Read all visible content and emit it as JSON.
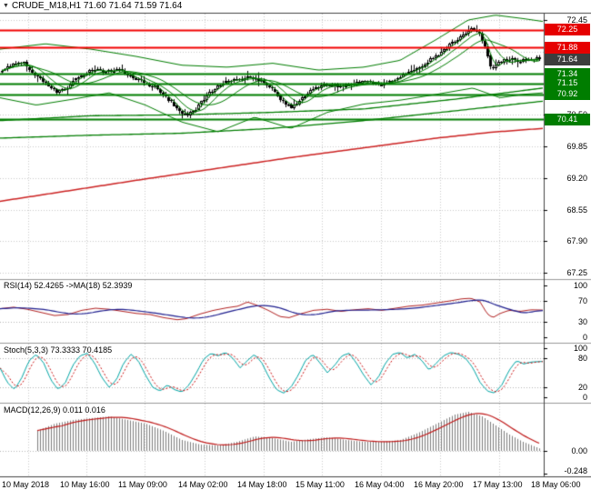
{
  "colors": {
    "up": "#ffffff",
    "down": "#000000",
    "wick": "#000000",
    "grid": "#c9c9c9",
    "band": "#007d00",
    "ma_red": "#cc2222",
    "res_line": "#f20000",
    "sup_line": "#007d00",
    "res_box": "#e60000",
    "sup_box": "#007d00",
    "cur_box": "#3d3d3d",
    "rsi": "#b22222",
    "rsi_ma": "#1f1f8f",
    "stoch": "#00a5a5",
    "stoch_sig": "#cc1111",
    "macd_hist": "#7d7d7d",
    "macd_sig": "#bf1818",
    "sep": "#999999",
    "frame": "#444444",
    "text": "#000000"
  },
  "icons": {
    "title_marker": "▼"
  },
  "time_axis": {
    "labels": [
      "10 May 2018",
      "10 May 16:00",
      "11 May 09:00",
      "14 May 02:00",
      "14 May 18:00",
      "15 May 11:00",
      "16 May 04:00",
      "16 May 20:00",
      "17 May 13:00",
      "18 May 06:00"
    ]
  },
  "chart_data": [
    {
      "type": "candlestick",
      "name": "main",
      "title": "CRUDE_M18,H1 71.60 71.64 71.59 71.64",
      "ohlc_current": {
        "open": "71.60",
        "high": "71.64",
        "low": "71.59",
        "close": "71.64"
      },
      "ylim": [
        67.25,
        72.45
      ],
      "y_ticks": [
        "72.45",
        "70.50",
        "69.85",
        "69.20",
        "68.55",
        "67.90",
        "67.25"
      ],
      "grid_prices": [
        72.45,
        71.8,
        71.15,
        70.5,
        69.85,
        69.2,
        68.55,
        67.9,
        67.25
      ],
      "levels": [
        {
          "price": 72.25,
          "label": "72.25",
          "kind": "resistance"
        },
        {
          "price": 71.88,
          "label": "71.88",
          "kind": "resistance"
        },
        {
          "price": 71.64,
          "label": "71.64",
          "kind": "current"
        },
        {
          "price": 71.34,
          "label": "71.34",
          "kind": "support"
        },
        {
          "price": 71.15,
          "label": "71.15",
          "kind": "support"
        },
        {
          "price": 70.92,
          "label": "70.92",
          "kind": "support"
        },
        {
          "price": 70.41,
          "label": "70.41",
          "kind": "support"
        }
      ],
      "close_path": [
        [
          0,
          71.4
        ],
        [
          12,
          71.52
        ],
        [
          25,
          71.58
        ],
        [
          38,
          71.3
        ],
        [
          50,
          71.15
        ],
        [
          62,
          70.98
        ],
        [
          72,
          71.02
        ],
        [
          85,
          71.28
        ],
        [
          100,
          71.42
        ],
        [
          115,
          71.38
        ],
        [
          130,
          71.42
        ],
        [
          145,
          71.28
        ],
        [
          158,
          71.15
        ],
        [
          170,
          71.08
        ],
        [
          182,
          70.85
        ],
        [
          195,
          70.62
        ],
        [
          205,
          70.48
        ],
        [
          215,
          70.62
        ],
        [
          228,
          70.92
        ],
        [
          240,
          71.1
        ],
        [
          255,
          71.22
        ],
        [
          270,
          71.28
        ],
        [
          285,
          71.22
        ],
        [
          298,
          71.05
        ],
        [
          310,
          70.78
        ],
        [
          320,
          70.65
        ],
        [
          332,
          70.85
        ],
        [
          345,
          71.05
        ],
        [
          360,
          71.12
        ],
        [
          375,
          71.08
        ],
        [
          390,
          71.15
        ],
        [
          405,
          71.18
        ],
        [
          420,
          71.12
        ],
        [
          435,
          71.22
        ],
        [
          450,
          71.38
        ],
        [
          465,
          71.52
        ],
        [
          480,
          71.72
        ],
        [
          495,
          71.95
        ],
        [
          508,
          72.12
        ],
        [
          518,
          72.28
        ],
        [
          526,
          72.18
        ],
        [
          534,
          71.85
        ],
        [
          540,
          71.42
        ],
        [
          548,
          71.58
        ],
        [
          558,
          71.66
        ],
        [
          570,
          71.6
        ],
        [
          582,
          71.66
        ],
        [
          597,
          71.64
        ]
      ],
      "bands": {
        "upper": [
          [
            0,
            71.85
          ],
          [
            50,
            71.96
          ],
          [
            100,
            71.85
          ],
          [
            150,
            71.7
          ],
          [
            200,
            71.52
          ],
          [
            250,
            71.48
          ],
          [
            300,
            71.56
          ],
          [
            350,
            71.42
          ],
          [
            400,
            71.48
          ],
          [
            440,
            71.62
          ],
          [
            480,
            72.05
          ],
          [
            515,
            72.45
          ],
          [
            545,
            72.55
          ],
          [
            575,
            72.48
          ],
          [
            597,
            72.42
          ]
        ],
        "lower": [
          [
            0,
            70.85
          ],
          [
            40,
            70.7
          ],
          [
            80,
            70.82
          ],
          [
            120,
            70.95
          ],
          [
            160,
            70.7
          ],
          [
            200,
            70.35
          ],
          [
            240,
            70.15
          ],
          [
            280,
            70.45
          ],
          [
            320,
            70.22
          ],
          [
            360,
            70.55
          ],
          [
            400,
            70.72
          ],
          [
            440,
            70.8
          ],
          [
            480,
            70.92
          ],
          [
            520,
            71.05
          ],
          [
            550,
            70.85
          ],
          [
            575,
            70.92
          ],
          [
            597,
            70.95
          ]
        ],
        "ma_long": [
          [
            0,
            70.38
          ],
          [
            100,
            70.48
          ],
          [
            200,
            70.5
          ],
          [
            300,
            70.55
          ],
          [
            400,
            70.62
          ],
          [
            500,
            70.82
          ],
          [
            597,
            71.05
          ]
        ],
        "ma_long2": [
          [
            0,
            70.02
          ],
          [
            100,
            70.08
          ],
          [
            200,
            70.12
          ],
          [
            300,
            70.22
          ],
          [
            400,
            70.38
          ],
          [
            500,
            70.58
          ],
          [
            597,
            70.78
          ]
        ],
        "ma_red": [
          [
            0,
            68.72
          ],
          [
            80,
            68.95
          ],
          [
            160,
            69.18
          ],
          [
            240,
            69.4
          ],
          [
            320,
            69.62
          ],
          [
            400,
            69.82
          ],
          [
            480,
            70.02
          ],
          [
            540,
            70.14
          ],
          [
            597,
            70.22
          ]
        ]
      }
    },
    {
      "type": "line",
      "name": "rsi",
      "label": "RSI(14) 52.4265 ->MA(18) 52.3939",
      "values": [
        "52.4265",
        "52.3939"
      ],
      "ylim": [
        0,
        100
      ],
      "y_ticks": [
        "100",
        "70",
        "30",
        "0"
      ],
      "y_tick_values": [
        100,
        70,
        30,
        0
      ],
      "levels": [
        70,
        30
      ],
      "series": [
        {
          "name": "RSI",
          "path": [
            [
              0,
              55
            ],
            [
              15,
              58
            ],
            [
              30,
              54
            ],
            [
              45,
              48
            ],
            [
              60,
              42
            ],
            [
              75,
              44
            ],
            [
              90,
              52
            ],
            [
              105,
              56
            ],
            [
              120,
              54
            ],
            [
              135,
              50
            ],
            [
              150,
              46
            ],
            [
              165,
              44
            ],
            [
              180,
              38
            ],
            [
              195,
              34
            ],
            [
              205,
              36
            ],
            [
              220,
              45
            ],
            [
              235,
              52
            ],
            [
              250,
              57
            ],
            [
              262,
              60
            ],
            [
              272,
              68
            ],
            [
              282,
              62
            ],
            [
              295,
              52
            ],
            [
              308,
              40
            ],
            [
              318,
              38
            ],
            [
              330,
              45
            ],
            [
              345,
              52
            ],
            [
              360,
              54
            ],
            [
              375,
              50
            ],
            [
              390,
              53
            ],
            [
              405,
              55
            ],
            [
              420,
              52
            ],
            [
              435,
              56
            ],
            [
              450,
              60
            ],
            [
              465,
              62
            ],
            [
              480,
              66
            ],
            [
              495,
              70
            ],
            [
              508,
              74
            ],
            [
              518,
              75
            ],
            [
              528,
              68
            ],
            [
              536,
              45
            ],
            [
              542,
              38
            ],
            [
              550,
              46
            ],
            [
              560,
              52
            ],
            [
              572,
              50
            ],
            [
              584,
              53
            ],
            [
              597,
              52.4
            ]
          ]
        },
        {
          "name": "MA",
          "derived": "smooth(RSI,18)"
        }
      ]
    },
    {
      "type": "line",
      "name": "stoch",
      "label": "Stoch(5,3,3) 73.3333 70.4185",
      "values": [
        "73.3333",
        "70.4185"
      ],
      "ylim": [
        0,
        100
      ],
      "y_ticks": [
        "100",
        "80",
        "20",
        "0"
      ],
      "y_tick_values": [
        100,
        80,
        20,
        0
      ],
      "levels": [
        80,
        20
      ],
      "series": [
        {
          "name": "%K",
          "path": [
            [
              0,
              60
            ],
            [
              8,
              30
            ],
            [
              16,
              15
            ],
            [
              24,
              40
            ],
            [
              32,
              75
            ],
            [
              40,
              88
            ],
            [
              48,
              70
            ],
            [
              56,
              35
            ],
            [
              64,
              15
            ],
            [
              72,
              30
            ],
            [
              80,
              65
            ],
            [
              88,
              85
            ],
            [
              96,
              90
            ],
            [
              104,
              70
            ],
            [
              112,
              40
            ],
            [
              120,
              20
            ],
            [
              128,
              35
            ],
            [
              136,
              70
            ],
            [
              144,
              88
            ],
            [
              152,
              75
            ],
            [
              160,
              45
            ],
            [
              168,
              20
            ],
            [
              176,
              12
            ],
            [
              184,
              25
            ],
            [
              192,
              15
            ],
            [
              200,
              10
            ],
            [
              208,
              25
            ],
            [
              216,
              50
            ],
            [
              224,
              78
            ],
            [
              232,
              90
            ],
            [
              240,
              85
            ],
            [
              248,
              92
            ],
            [
              256,
              80
            ],
            [
              264,
              60
            ],
            [
              272,
              75
            ],
            [
              280,
              88
            ],
            [
              288,
              70
            ],
            [
              296,
              40
            ],
            [
              304,
              15
            ],
            [
              312,
              8
            ],
            [
              320,
              20
            ],
            [
              328,
              45
            ],
            [
              336,
              75
            ],
            [
              344,
              88
            ],
            [
              352,
              70
            ],
            [
              360,
              50
            ],
            [
              368,
              65
            ],
            [
              376,
              85
            ],
            [
              384,
              90
            ],
            [
              392,
              70
            ],
            [
              400,
              45
            ],
            [
              408,
              25
            ],
            [
              416,
              40
            ],
            [
              424,
              70
            ],
            [
              432,
              88
            ],
            [
              440,
              92
            ],
            [
              448,
              80
            ],
            [
              456,
              88
            ],
            [
              464,
              75
            ],
            [
              472,
              55
            ],
            [
              480,
              70
            ],
            [
              488,
              85
            ],
            [
              496,
              92
            ],
            [
              504,
              88
            ],
            [
              512,
              80
            ],
            [
              520,
              60
            ],
            [
              528,
              30
            ],
            [
              536,
              12
            ],
            [
              544,
              8
            ],
            [
              552,
              25
            ],
            [
              560,
              55
            ],
            [
              568,
              75
            ],
            [
              576,
              68
            ],
            [
              584,
              72
            ],
            [
              597,
              73.3
            ]
          ]
        },
        {
          "name": "%D",
          "derived": "smooth(%K,3)"
        }
      ]
    },
    {
      "type": "macd",
      "name": "macd",
      "label": "MACD(12,26,9) 0.011 0.016",
      "values": [
        "0.011",
        "0.016"
      ],
      "ylim": [
        -0.27,
        0.52
      ],
      "y_ticks": [
        "0.00",
        "-0.248"
      ],
      "y_tick_values": [
        0,
        -0.248
      ],
      "levels": [
        0
      ],
      "hist_path": [
        [
          40,
          0.22
        ],
        [
          60,
          0.3
        ],
        [
          80,
          0.34
        ],
        [
          100,
          0.36
        ],
        [
          120,
          0.38
        ],
        [
          140,
          0.34
        ],
        [
          160,
          0.3
        ],
        [
          180,
          0.22
        ],
        [
          200,
          0.12
        ],
        [
          220,
          0.07
        ],
        [
          240,
          0.06
        ],
        [
          260,
          0.1
        ],
        [
          280,
          0.16
        ],
        [
          300,
          0.14
        ],
        [
          320,
          0.1
        ],
        [
          340,
          0.13
        ],
        [
          360,
          0.15
        ],
        [
          380,
          0.12
        ],
        [
          400,
          0.1
        ],
        [
          420,
          0.1
        ],
        [
          440,
          0.12
        ],
        [
          460,
          0.2
        ],
        [
          480,
          0.3
        ],
        [
          500,
          0.4
        ],
        [
          515,
          0.43
        ],
        [
          530,
          0.38
        ],
        [
          545,
          0.28
        ],
        [
          560,
          0.18
        ],
        [
          575,
          0.1
        ],
        [
          590,
          0.04
        ],
        [
          597,
          0.011
        ]
      ]
    }
  ]
}
